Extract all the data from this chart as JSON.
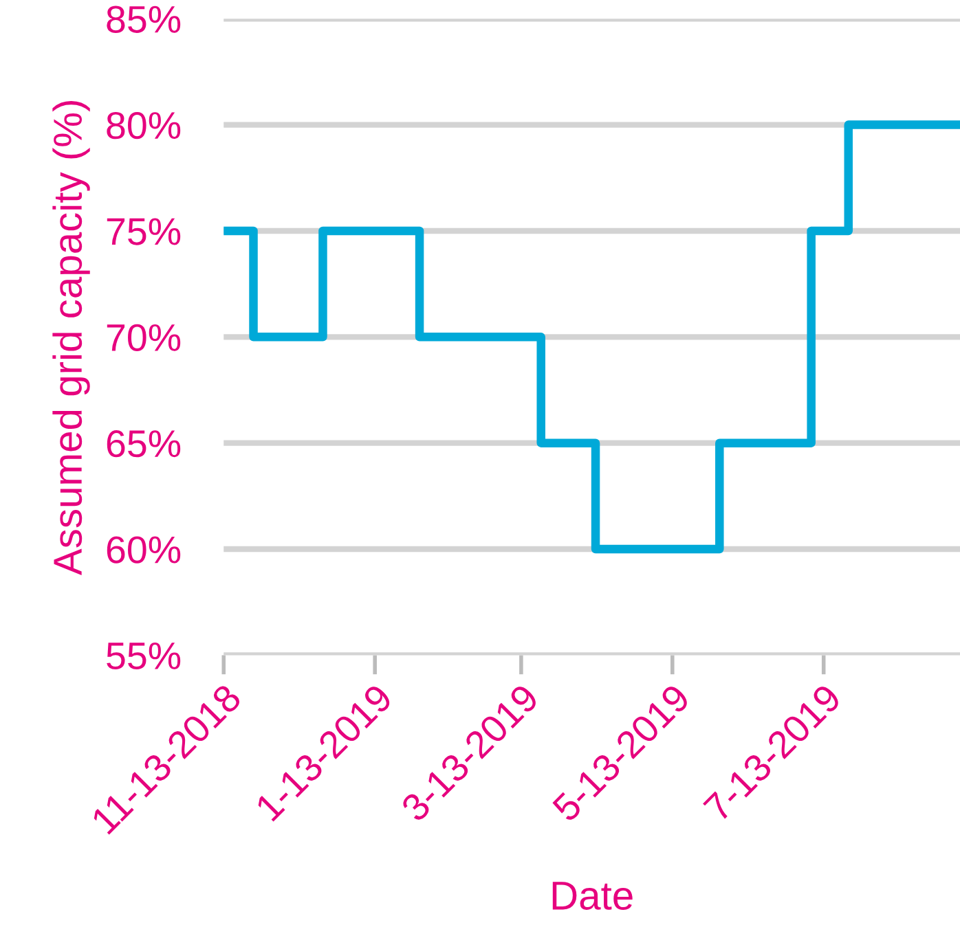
{
  "chart_data": {
    "type": "step",
    "xlabel": "Date",
    "ylabel": "Assumed grid capacity (%)",
    "x": [
      "2018-11-13",
      "2018-11-25",
      "2018-12-23",
      "2019-01-31",
      "2019-03-21",
      "2019-04-12",
      "2019-06-01",
      "2019-07-08",
      "2019-07-23",
      "2019-09-06"
    ],
    "series": [
      {
        "color": "#00a9d8",
        "values": [
          75,
          70,
          75,
          70,
          65,
          60,
          65,
          75,
          80,
          80
        ]
      }
    ],
    "xlim": [
      "2018-11-13",
      "2019-09-06"
    ],
    "xticks": [
      {
        "value": "2018-11-13",
        "label": "11-13-2018"
      },
      {
        "value": "2019-01-13",
        "label": "1-13-2019"
      },
      {
        "value": "2019-03-13",
        "label": "3-13-2019"
      },
      {
        "value": "2019-05-13",
        "label": "5-13-2019"
      },
      {
        "value": "2019-07-13",
        "label": "7-13-2019"
      }
    ],
    "ylim": [
      55,
      85
    ],
    "yticks": [
      {
        "value": 55,
        "label": "55%"
      },
      {
        "value": 60,
        "label": "60%"
      },
      {
        "value": 65,
        "label": "65%"
      },
      {
        "value": 70,
        "label": "70%"
      },
      {
        "value": 75,
        "label": "75%"
      },
      {
        "value": 80,
        "label": "80%"
      },
      {
        "value": 85,
        "label": "85%"
      }
    ],
    "grid": "y",
    "legend": false,
    "marker": "none",
    "line_style": "solid"
  }
}
